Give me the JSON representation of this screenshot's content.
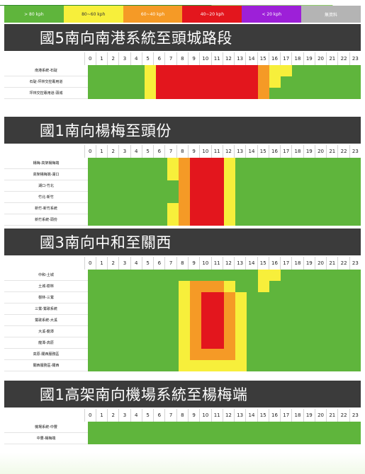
{
  "colors": {
    "green": "#5fb53c",
    "yellow": "#f7ef3b",
    "orange": "#f59a26",
    "red": "#e3161d",
    "purple": "#9d20d8",
    "gray": "#b4b4b4"
  },
  "legend": [
    {
      "label": "> 80 kph",
      "color": "green"
    },
    {
      "label": "80~60 kph",
      "color": "yellow"
    },
    {
      "label": "60~40 kph",
      "color": "orange"
    },
    {
      "label": "40~20 kph",
      "color": "red"
    },
    {
      "label": "< 20 kph",
      "color": "purple"
    },
    {
      "label": "無資料",
      "color": "gray"
    }
  ],
  "chart_data": {
    "type": "heatmap",
    "xlabels": [
      "0",
      "1",
      "2",
      "3",
      "4",
      "5",
      "6",
      "7",
      "8",
      "9",
      "10",
      "11",
      "12",
      "13",
      "14",
      "15",
      "16",
      "17",
      "18",
      "19",
      "20",
      "21",
      "22",
      "23"
    ],
    "sections": [
      {
        "title": "國5南向南港系統至頭城路段",
        "rows": [
          {
            "label": "南港系統-石碇",
            "values": [
              "green",
              "green",
              "green",
              "green",
              "green",
              "yellow",
              "red",
              "red",
              "red",
              "red",
              "red",
              "red",
              "red",
              "red",
              "red",
              "orange",
              "yellow",
              "yellow",
              "green",
              "green",
              "green",
              "green",
              "green",
              "green"
            ]
          },
          {
            "label": "石碇-坪林交控專用道",
            "values": [
              "green",
              "green",
              "green",
              "green",
              "green",
              "yellow",
              "red",
              "red",
              "red",
              "red",
              "red",
              "red",
              "red",
              "red",
              "red",
              "orange",
              "yellow",
              "green",
              "green",
              "green",
              "green",
              "green",
              "green",
              "green"
            ]
          },
          {
            "label": "坪林交控專用道-頭城",
            "values": [
              "green",
              "green",
              "green",
              "green",
              "green",
              "yellow",
              "red",
              "red",
              "red",
              "red",
              "red",
              "red",
              "red",
              "red",
              "red",
              "orange",
              "green",
              "green",
              "green",
              "green",
              "green",
              "green",
              "green",
              "green"
            ]
          }
        ]
      },
      {
        "title": "國1南向楊梅至頭份",
        "rows": [
          {
            "label": "楊梅-高架楊梅端",
            "values": [
              "green",
              "green",
              "green",
              "green",
              "green",
              "green",
              "green",
              "yellow",
              "orange",
              "red",
              "red",
              "red",
              "yellow",
              "green",
              "green",
              "green",
              "green",
              "green",
              "green",
              "green",
              "green",
              "green",
              "green",
              "green"
            ]
          },
          {
            "label": "高架楊梅端-湖口",
            "values": [
              "green",
              "green",
              "green",
              "green",
              "green",
              "green",
              "green",
              "yellow",
              "orange",
              "red",
              "red",
              "red",
              "yellow",
              "green",
              "green",
              "green",
              "green",
              "green",
              "green",
              "green",
              "green",
              "green",
              "green",
              "green"
            ]
          },
          {
            "label": "湖口-竹北",
            "values": [
              "green",
              "green",
              "green",
              "green",
              "green",
              "green",
              "green",
              "green",
              "orange",
              "red",
              "red",
              "red",
              "yellow",
              "green",
              "green",
              "green",
              "green",
              "green",
              "green",
              "green",
              "green",
              "green",
              "green",
              "green"
            ]
          },
          {
            "label": "竹北-新竹",
            "values": [
              "green",
              "green",
              "green",
              "green",
              "green",
              "green",
              "green",
              "green",
              "orange",
              "red",
              "red",
              "red",
              "yellow",
              "green",
              "green",
              "green",
              "green",
              "green",
              "green",
              "green",
              "green",
              "green",
              "green",
              "green"
            ]
          },
          {
            "label": "新竹-新竹系統",
            "values": [
              "green",
              "green",
              "green",
              "green",
              "green",
              "green",
              "green",
              "yellow",
              "orange",
              "red",
              "red",
              "red",
              "yellow",
              "green",
              "green",
              "green",
              "green",
              "green",
              "green",
              "green",
              "green",
              "green",
              "green",
              "green"
            ]
          },
          {
            "label": "新竹系統-頭份",
            "values": [
              "green",
              "green",
              "green",
              "green",
              "green",
              "green",
              "green",
              "yellow",
              "orange",
              "red",
              "red",
              "red",
              "yellow",
              "green",
              "green",
              "green",
              "green",
              "green",
              "green",
              "green",
              "green",
              "green",
              "green",
              "green"
            ]
          }
        ]
      },
      {
        "title": "國3南向中和至關西",
        "rows": [
          {
            "label": "中和-土城",
            "values": [
              "green",
              "green",
              "green",
              "green",
              "green",
              "green",
              "green",
              "green",
              "green",
              "green",
              "green",
              "green",
              "green",
              "green",
              "green",
              "yellow",
              "yellow",
              "green",
              "green",
              "green",
              "green",
              "green",
              "green",
              "green"
            ]
          },
          {
            "label": "土城-樹林",
            "values": [
              "green",
              "green",
              "green",
              "green",
              "green",
              "green",
              "green",
              "green",
              "yellow",
              "orange",
              "orange",
              "orange",
              "yellow",
              "green",
              "green",
              "yellow",
              "green",
              "green",
              "green",
              "green",
              "green",
              "green",
              "green",
              "green"
            ]
          },
          {
            "label": "樹林-三鶯",
            "values": [
              "green",
              "green",
              "green",
              "green",
              "green",
              "green",
              "green",
              "green",
              "yellow",
              "orange",
              "red",
              "red",
              "orange",
              "yellow",
              "green",
              "green",
              "green",
              "green",
              "green",
              "green",
              "green",
              "green",
              "green",
              "green"
            ]
          },
          {
            "label": "三鶯-鶯歌系統",
            "values": [
              "green",
              "green",
              "green",
              "green",
              "green",
              "green",
              "green",
              "green",
              "yellow",
              "orange",
              "red",
              "red",
              "orange",
              "yellow",
              "green",
              "green",
              "green",
              "green",
              "green",
              "green",
              "green",
              "green",
              "green",
              "green"
            ]
          },
          {
            "label": "鶯歌系統-大溪",
            "values": [
              "green",
              "green",
              "green",
              "green",
              "green",
              "green",
              "green",
              "green",
              "yellow",
              "orange",
              "red",
              "red",
              "orange",
              "yellow",
              "green",
              "green",
              "green",
              "green",
              "green",
              "green",
              "green",
              "green",
              "green",
              "green"
            ]
          },
          {
            "label": "大溪-龍潭",
            "values": [
              "green",
              "green",
              "green",
              "green",
              "green",
              "green",
              "green",
              "green",
              "yellow",
              "orange",
              "red",
              "red",
              "orange",
              "yellow",
              "green",
              "green",
              "green",
              "green",
              "green",
              "green",
              "green",
              "green",
              "green",
              "green"
            ]
          },
          {
            "label": "龍潭-高原",
            "values": [
              "green",
              "green",
              "green",
              "green",
              "green",
              "green",
              "green",
              "green",
              "yellow",
              "orange",
              "red",
              "red",
              "orange",
              "yellow",
              "green",
              "green",
              "green",
              "green",
              "green",
              "green",
              "green",
              "green",
              "green",
              "green"
            ]
          },
          {
            "label": "高原-關西服務區",
            "values": [
              "green",
              "green",
              "green",
              "green",
              "green",
              "green",
              "green",
              "green",
              "yellow",
              "orange",
              "orange",
              "orange",
              "orange",
              "yellow",
              "green",
              "green",
              "green",
              "green",
              "green",
              "green",
              "green",
              "green",
              "green",
              "green"
            ]
          },
          {
            "label": "關西服務區-關西",
            "values": [
              "green",
              "green",
              "green",
              "green",
              "green",
              "green",
              "green",
              "green",
              "yellow",
              "yellow",
              "yellow",
              "yellow",
              "yellow",
              "yellow",
              "green",
              "green",
              "green",
              "green",
              "green",
              "green",
              "green",
              "green",
              "green",
              "green"
            ]
          }
        ]
      },
      {
        "title": "國1高架南向機場系統至楊梅端",
        "rows": [
          {
            "label": "機場系統-中豐",
            "values": [
              "green",
              "green",
              "green",
              "green",
              "green",
              "green",
              "green",
              "green",
              "green",
              "green",
              "green",
              "green",
              "green",
              "green",
              "green",
              "green",
              "green",
              "green",
              "green",
              "green",
              "green",
              "green",
              "green",
              "green"
            ]
          },
          {
            "label": "中豐-楊梅端",
            "values": [
              "green",
              "green",
              "green",
              "green",
              "green",
              "green",
              "green",
              "green",
              "green",
              "green",
              "green",
              "green",
              "green",
              "green",
              "green",
              "green",
              "green",
              "green",
              "green",
              "green",
              "green",
              "green",
              "green",
              "green"
            ]
          }
        ]
      }
    ]
  }
}
